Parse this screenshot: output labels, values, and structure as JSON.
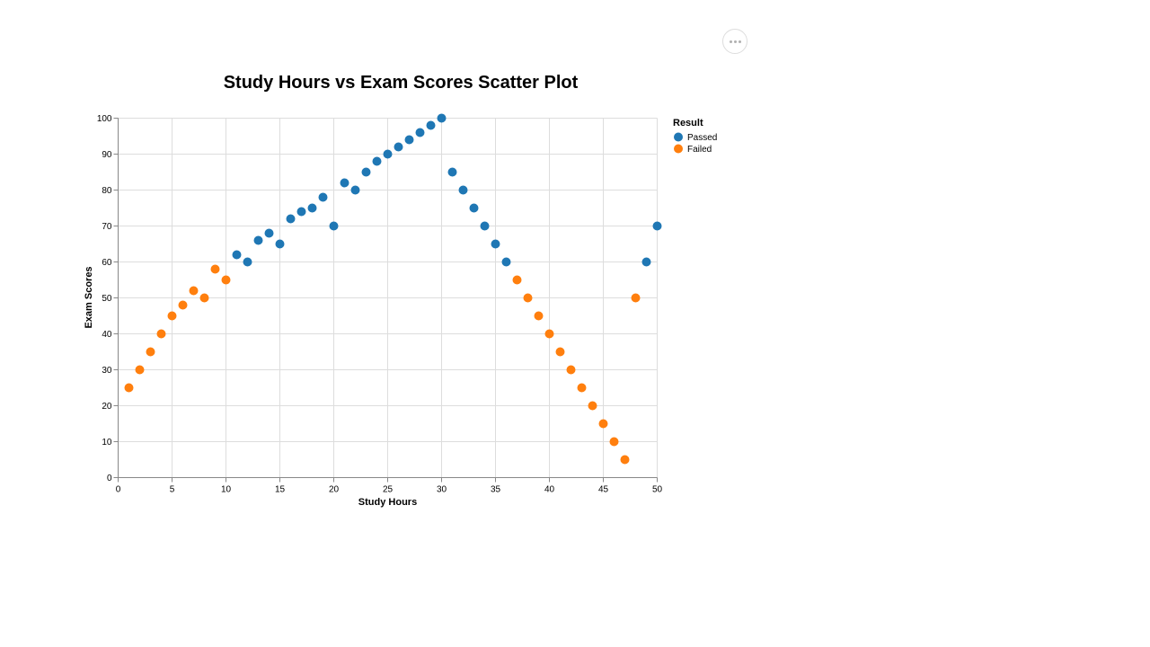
{
  "actions_menu": {
    "icon": "more-horizontal-icon"
  },
  "chart_data": {
    "type": "scatter",
    "title": "Study Hours vs Exam Scores Scatter Plot",
    "xlabel": "Study Hours",
    "ylabel": "Exam Scores",
    "xlim": [
      0,
      50
    ],
    "ylim": [
      0,
      100
    ],
    "xticks": [
      0,
      5,
      10,
      15,
      20,
      25,
      30,
      35,
      40,
      45,
      50
    ],
    "yticks": [
      0,
      10,
      20,
      30,
      40,
      50,
      60,
      70,
      80,
      90,
      100
    ],
    "grid": true,
    "legend_position": "right",
    "legend": {
      "title": "Result",
      "items": [
        {
          "label": "Passed",
          "color": "#1f77b4"
        },
        {
          "label": "Failed",
          "color": "#ff7f0e"
        }
      ]
    },
    "series": [
      {
        "name": "Passed",
        "color": "#1f77b4",
        "points": [
          [
            11,
            62
          ],
          [
            12,
            60
          ],
          [
            13,
            66
          ],
          [
            14,
            68
          ],
          [
            15,
            65
          ],
          [
            16,
            72
          ],
          [
            17,
            74
          ],
          [
            18,
            75
          ],
          [
            19,
            78
          ],
          [
            20,
            70
          ],
          [
            21,
            82
          ],
          [
            22,
            80
          ],
          [
            23,
            85
          ],
          [
            24,
            88
          ],
          [
            25,
            90
          ],
          [
            26,
            92
          ],
          [
            27,
            94
          ],
          [
            28,
            96
          ],
          [
            29,
            98
          ],
          [
            30,
            100
          ],
          [
            31,
            85
          ],
          [
            32,
            80
          ],
          [
            33,
            75
          ],
          [
            34,
            70
          ],
          [
            35,
            65
          ],
          [
            36,
            60
          ],
          [
            49,
            60
          ],
          [
            50,
            70
          ]
        ]
      },
      {
        "name": "Failed",
        "color": "#ff7f0e",
        "points": [
          [
            1,
            25
          ],
          [
            2,
            30
          ],
          [
            3,
            35
          ],
          [
            4,
            40
          ],
          [
            5,
            45
          ],
          [
            6,
            48
          ],
          [
            7,
            52
          ],
          [
            8,
            50
          ],
          [
            9,
            58
          ],
          [
            10,
            55
          ],
          [
            37,
            55
          ],
          [
            38,
            50
          ],
          [
            39,
            45
          ],
          [
            40,
            40
          ],
          [
            41,
            35
          ],
          [
            42,
            30
          ],
          [
            43,
            25
          ],
          [
            44,
            20
          ],
          [
            45,
            15
          ],
          [
            46,
            10
          ],
          [
            47,
            5
          ],
          [
            48,
            50
          ]
        ]
      }
    ]
  }
}
